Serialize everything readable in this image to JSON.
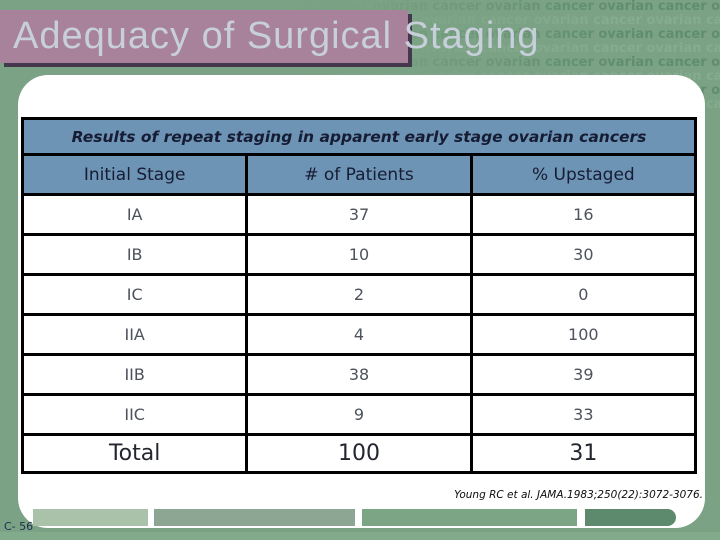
{
  "slide": {
    "title": "Adequacy of Surgical Staging",
    "slide_number": "C- 56",
    "citation": "Young RC et al. JAMA.1983;250(22):3072-3076.",
    "watermark": {
      "word": "ovarian cancer",
      "row_text": "ovarian cancer ovarian cancer ovarian cancer ovarian cancer ovarian cancer ovarian cancer ovarian cancer ovarian cancer"
    },
    "colors": {
      "background": "#7BA284",
      "bottom_strip": "#82AB8B",
      "title_box": "#A8819B",
      "title_box_shadow": "#43384E",
      "title_text": "#C7CFDA",
      "header_blue": "#6D93B5",
      "header_text": "#161C33",
      "body_text": "#4D525B",
      "total_text": "#23262E",
      "table_border": "#000000",
      "watermark_dark": "#5F8E6E",
      "watermark_light": "#86AC8F",
      "footer_segments": [
        "#A9C2A9",
        "#8DA693",
        "#7CA585",
        "#5D8A6D"
      ]
    }
  },
  "table": {
    "caption": "Results of repeat staging in apparent early stage ovarian cancers",
    "columns": [
      "Initial Stage",
      "# of Patients",
      "% Upstaged"
    ],
    "rows": [
      {
        "stage": "IA",
        "patients": "37",
        "upstaged": "16"
      },
      {
        "stage": "IB",
        "patients": "10",
        "upstaged": "30"
      },
      {
        "stage": "IC",
        "patients": "2",
        "upstaged": "0"
      },
      {
        "stage": "IIA",
        "patients": "4",
        "upstaged": "100"
      },
      {
        "stage": "IIB",
        "patients": "38",
        "upstaged": "39"
      },
      {
        "stage": "IIC",
        "patients": "9",
        "upstaged": "33"
      }
    ],
    "total": {
      "label": "Total",
      "patients": "100",
      "upstaged": "31"
    }
  },
  "chart_data": {
    "type": "table",
    "title": "Results of repeat staging in apparent early stage ovarian cancers",
    "columns": [
      "Initial Stage",
      "# of Patients",
      "% Upstaged"
    ],
    "rows": [
      [
        "IA",
        37,
        16
      ],
      [
        "IB",
        10,
        30
      ],
      [
        "IC",
        2,
        0
      ],
      [
        "IIA",
        4,
        100
      ],
      [
        "IIB",
        38,
        39
      ],
      [
        "IIC",
        9,
        33
      ],
      [
        "Total",
        100,
        31
      ]
    ]
  }
}
